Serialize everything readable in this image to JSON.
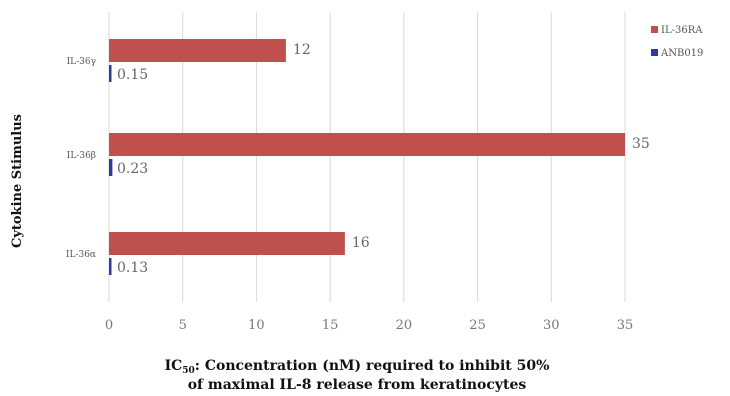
{
  "chart_data": {
    "type": "bar",
    "orientation": "horizontal",
    "categories": [
      "IL-36α",
      "IL-36β",
      "IL-36γ"
    ],
    "series": [
      {
        "name": "IL-36RA",
        "values": [
          16,
          35,
          12
        ],
        "labels": [
          "16",
          "35",
          "12"
        ],
        "color": "#c0504d"
      },
      {
        "name": "ANB019",
        "values": [
          0.13,
          0.23,
          0.15
        ],
        "labels": [
          "0.13",
          "0.23",
          "0.15"
        ],
        "color": "#2f3a9e"
      }
    ],
    "xlim": [
      0,
      35
    ],
    "xticks": [
      "0",
      "5",
      "10",
      "15",
      "20",
      "25",
      "30",
      "35"
    ],
    "xticks_values": [
      0,
      5,
      10,
      15,
      20,
      25,
      30,
      35
    ],
    "ylabel": "Cytokine Stimulus",
    "xlabel_line1_main": "IC",
    "xlabel_line1_sub": "50",
    "xlabel_line1_rest": ": Concentration (nM) required to inhibit 50%",
    "xlabel_line2": "of maximal IL-8 release from keratinocytes",
    "grid": true,
    "legend_position": "top-right"
  }
}
